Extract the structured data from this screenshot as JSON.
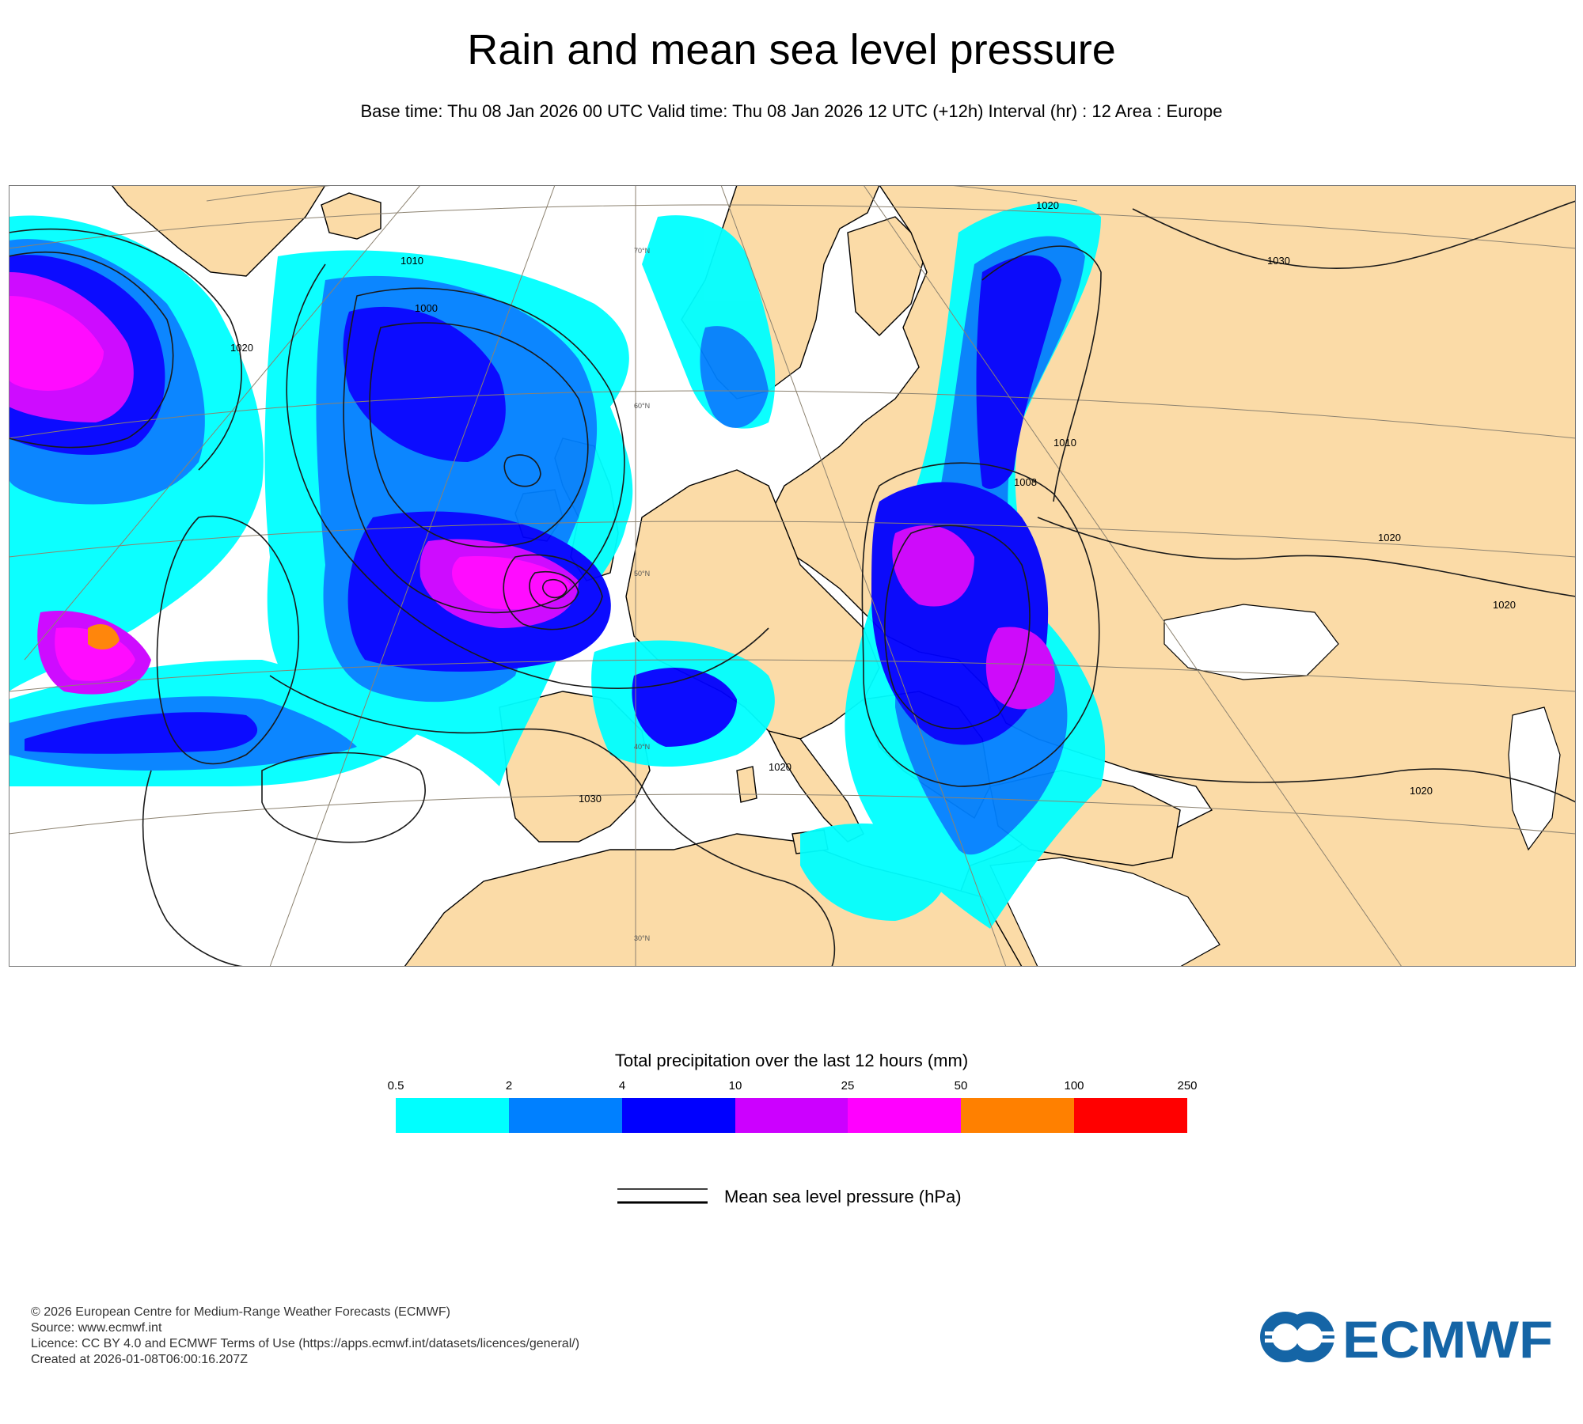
{
  "header": {
    "title": "Rain and mean sea level pressure",
    "subtitle": "Base time: Thu 08 Jan 2026 00 UTC Valid time: Thu 08 Jan 2026 12 UTC (+12h) Interval (hr) : 12 Area : Europe"
  },
  "map": {
    "area": "Europe",
    "colors": {
      "land": "#fbdba7",
      "sea": "#ffffff",
      "border": "#7a7a7a",
      "coast": "#000000",
      "grid": "#8c8270"
    },
    "isobar_labels": [
      "1000",
      "1010",
      "1020",
      "1030",
      "1008"
    ],
    "latitude_labels": [
      "70°N",
      "60°N",
      "50°N",
      "40°N",
      "30°N"
    ]
  },
  "legend": {
    "title": "Total precipitation over the last 12 hours (mm)",
    "ticks": [
      "0.5",
      "2",
      "4",
      "10",
      "25",
      "50",
      "100",
      "250"
    ],
    "colors": [
      "#00ffff",
      "#0080ff",
      "#0000ff",
      "#cc00ff",
      "#ff00ff",
      "#ff8000",
      "#ff0000"
    ],
    "isobar_label": "Mean sea level pressure (hPa)"
  },
  "footer": {
    "lines": [
      "© 2026 European Centre for Medium-Range Weather Forecasts (ECMWF)",
      "Source: www.ecmwf.int",
      "Licence: CC BY 4.0 and ECMWF Terms of Use (https://apps.ecmwf.int/datasets/licences/general/)",
      "Created at 2026-01-08T06:00:16.207Z"
    ]
  },
  "logo": {
    "text": "ECMWF",
    "color": "#1565a6"
  }
}
